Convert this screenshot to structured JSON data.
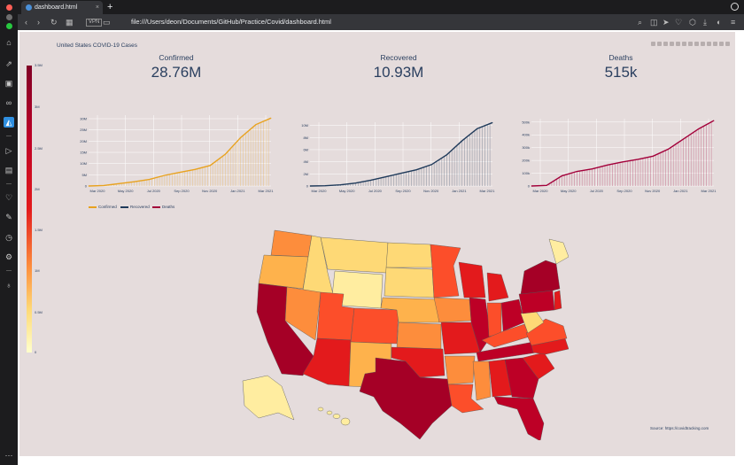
{
  "browser": {
    "tab_title": "dashboard.html",
    "tab_close": "×",
    "new_tab": "+",
    "url": "file:///Users/deon/Documents/GitHub/Practice/Covid/dashboard.html",
    "vpn_label": "VPN"
  },
  "dashboard": {
    "title": "United States COVID-19 Cases",
    "indicators": [
      {
        "label": "Confirmed",
        "value": "28.76M"
      },
      {
        "label": "Recovered",
        "value": "10.93M"
      },
      {
        "label": "Deaths",
        "value": "515k"
      }
    ],
    "source": "Source: https://covidtracking.com",
    "colorbar": {
      "ticks": [
        "3.5M",
        "3M",
        "2.5M",
        "2M",
        "1.5M",
        "1M",
        "0.5M",
        "0"
      ],
      "colors": [
        "#fff5b5",
        "#fed976",
        "#feb24c",
        "#fd8d3c",
        "#fc4e2a",
        "#e31a1c",
        "#bd0026",
        "#800026"
      ]
    }
  },
  "chart_data": [
    {
      "type": "area",
      "series": [
        {
          "name": "Confirmed",
          "color": "#e8a21f"
        }
      ],
      "x_ticks": [
        "Mar 2020",
        "May 2020",
        "Jul 2020",
        "Sep 2020",
        "Nov 2020",
        "Jan 2021",
        "Mar 2021"
      ],
      "y_ticks": [
        "0",
        "5M",
        "10M",
        "15M",
        "20M",
        "25M",
        "30M"
      ],
      "x": [
        0,
        1,
        2,
        3,
        4,
        5,
        6,
        7,
        8,
        9,
        10,
        11,
        12
      ],
      "values": [
        0,
        0.2,
        1.0,
        1.8,
        2.8,
        4.5,
        5.8,
        7.0,
        8.7,
        13.5,
        20.5,
        26.0,
        28.76
      ],
      "ylim": [
        0,
        30
      ]
    },
    {
      "type": "area",
      "series": [
        {
          "name": "Recovered",
          "color": "#1f3a5a"
        }
      ],
      "x_ticks": [
        "Mar 2020",
        "May 2020",
        "Jul 2020",
        "Sep 2020",
        "Nov 2020",
        "Jan 2021",
        "Mar 2021"
      ],
      "y_ticks": [
        "0",
        "2M",
        "4M",
        "6M",
        "8M",
        "10M"
      ],
      "x": [
        0,
        1,
        2,
        3,
        4,
        5,
        6,
        7,
        8,
        9,
        10,
        11,
        12
      ],
      "values": [
        0,
        0.05,
        0.2,
        0.5,
        1.0,
        1.6,
        2.2,
        2.8,
        3.7,
        5.4,
        7.8,
        9.9,
        10.93
      ],
      "ylim": [
        0,
        11
      ]
    },
    {
      "type": "area",
      "series": [
        {
          "name": "Deaths",
          "color": "#a3003a"
        }
      ],
      "x_ticks": [
        "Mar 2020",
        "May 2020",
        "Jul 2020",
        "Sep 2020",
        "Nov 2020",
        "Jan 2021",
        "Mar 2021"
      ],
      "y_ticks": [
        "0",
        "100k",
        "200k",
        "300k",
        "400k",
        "500k"
      ],
      "x": [
        0,
        1,
        2,
        3,
        4,
        5,
        6,
        7,
        8,
        9,
        10,
        11,
        12
      ],
      "values": [
        0,
        5,
        80,
        115,
        135,
        165,
        190,
        210,
        235,
        290,
        370,
        450,
        515
      ],
      "ylim": [
        0,
        530
      ]
    }
  ]
}
